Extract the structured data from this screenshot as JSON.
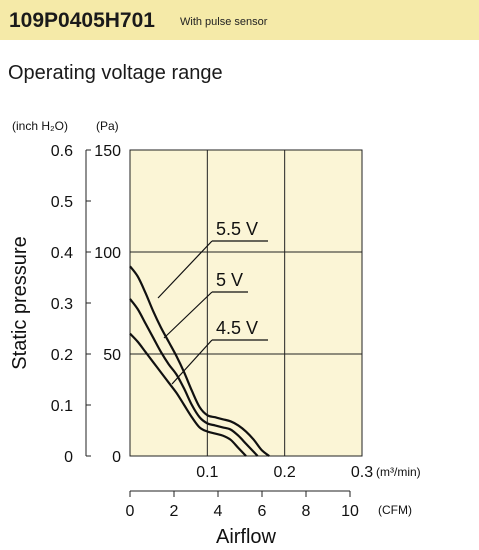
{
  "header": {
    "model": "109P0405H701",
    "note": "With pulse sensor"
  },
  "section_title": "Operating voltage range",
  "chart_data": {
    "type": "line",
    "title": "Operating voltage range",
    "xlabel": "Airflow",
    "ylabel": "Static pressure",
    "x_unit": "(m³/min)",
    "x_unit_secondary": "(CFM)",
    "y_unit_left": "(inch H₂O)",
    "y_unit_right": "(Pa)",
    "xlim": [
      0,
      0.3
    ],
    "ylim_pa": [
      0,
      150
    ],
    "x_ticks": [
      {
        "value": 0.1,
        "label": "0.1"
      },
      {
        "value": 0.2,
        "label": "0.2"
      },
      {
        "value": 0.3,
        "label": "0.3"
      }
    ],
    "x_ticks_cfm": [
      {
        "value": 0,
        "label": "0"
      },
      {
        "value": 2,
        "label": "2"
      },
      {
        "value": 4,
        "label": "4"
      },
      {
        "value": 6,
        "label": "6"
      },
      {
        "value": 8,
        "label": "8"
      },
      {
        "value": 10,
        "label": "10"
      }
    ],
    "y_ticks_pa": [
      {
        "value": 0,
        "label": "0"
      },
      {
        "value": 50,
        "label": "50"
      },
      {
        "value": 100,
        "label": "100"
      },
      {
        "value": 150,
        "label": "150"
      }
    ],
    "y_ticks_inch": [
      {
        "value": 0,
        "label": "0"
      },
      {
        "value": 0.1,
        "label": "0.1"
      },
      {
        "value": 0.2,
        "label": "0.2"
      },
      {
        "value": 0.3,
        "label": "0.3"
      },
      {
        "value": 0.4,
        "label": "0.4"
      },
      {
        "value": 0.5,
        "label": "0.5"
      },
      {
        "value": 0.6,
        "label": "0.6"
      }
    ],
    "grid": true,
    "series": [
      {
        "name": "5.5 V",
        "x": [
          0,
          0.01,
          0.02,
          0.03,
          0.04,
          0.05,
          0.06,
          0.07,
          0.08,
          0.09,
          0.1,
          0.11,
          0.12,
          0.13,
          0.14,
          0.15,
          0.16,
          0.17,
          0.18
        ],
        "y": [
          93,
          88,
          80,
          71,
          63,
          56,
          49,
          41,
          32,
          24,
          20,
          19,
          18,
          17,
          15,
          12,
          8,
          3,
          0
        ]
      },
      {
        "name": "5 V",
        "x": [
          0,
          0.01,
          0.02,
          0.03,
          0.04,
          0.05,
          0.06,
          0.07,
          0.08,
          0.09,
          0.1,
          0.11,
          0.12,
          0.13,
          0.14,
          0.15,
          0.16,
          0.165
        ],
        "y": [
          77,
          72,
          65,
          58,
          51,
          45,
          40,
          33,
          25,
          19,
          16,
          15,
          14,
          13,
          10,
          6,
          2,
          0
        ]
      },
      {
        "name": "4.5 V",
        "x": [
          0,
          0.01,
          0.02,
          0.03,
          0.04,
          0.05,
          0.06,
          0.07,
          0.08,
          0.09,
          0.1,
          0.11,
          0.12,
          0.13,
          0.14,
          0.15
        ],
        "y": [
          60,
          56,
          51,
          46,
          41,
          36,
          31,
          25,
          19,
          14,
          12,
          11,
          10,
          8,
          4,
          0
        ]
      }
    ]
  }
}
